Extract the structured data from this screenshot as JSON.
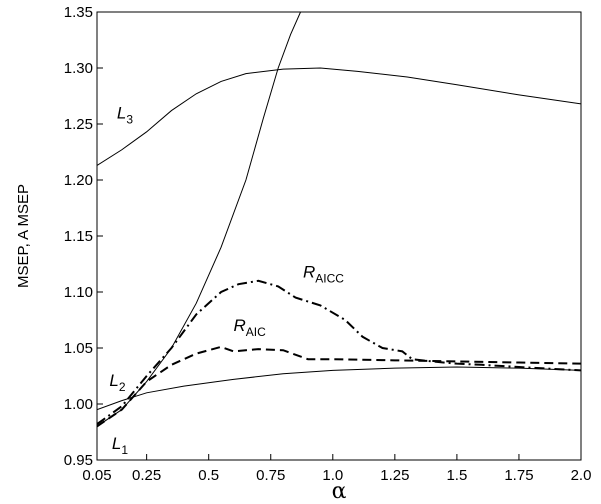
{
  "chart_data": {
    "type": "line",
    "xlabel": "α",
    "ylabel": "MSEP,  A MSEP",
    "xlim": [
      0.05,
      2.0
    ],
    "ylim": [
      0.95,
      1.35
    ],
    "x_ticks": [
      0.05,
      0.25,
      0.5,
      0.75,
      1.0,
      1.25,
      1.5,
      1.75,
      2.0
    ],
    "x_tick_labels": [
      "0.05",
      "0.25",
      "0.5",
      "0.75",
      "1.0",
      "1.25",
      "1.5",
      "1.75",
      "2.0"
    ],
    "y_ticks": [
      0.95,
      1.0,
      1.05,
      1.1,
      1.15,
      1.2,
      1.25,
      1.3,
      1.35
    ],
    "y_tick_labels": [
      "0.95",
      "1.00",
      "1.05",
      "1.10",
      "1.15",
      "1.20",
      "1.25",
      "1.30",
      "1.35"
    ],
    "grid": false,
    "legend": "none",
    "series": [
      {
        "name": "L1",
        "label_main": "L",
        "label_sub": "1",
        "style": "solid",
        "color": "#000000",
        "points": [
          [
            0.05,
            0.995
          ],
          [
            0.15,
            1.003
          ],
          [
            0.25,
            1.01
          ],
          [
            0.4,
            1.016
          ],
          [
            0.6,
            1.022
          ],
          [
            0.8,
            1.027
          ],
          [
            1.0,
            1.03
          ],
          [
            1.25,
            1.032
          ],
          [
            1.5,
            1.033
          ],
          [
            1.75,
            1.032
          ],
          [
            2.0,
            1.03
          ]
        ]
      },
      {
        "name": "L2",
        "label_main": "L",
        "label_sub": "2",
        "style": "solid",
        "color": "#000000",
        "points": [
          [
            0.05,
            0.98
          ],
          [
            0.15,
            0.995
          ],
          [
            0.25,
            1.02
          ],
          [
            0.35,
            1.05
          ],
          [
            0.45,
            1.09
          ],
          [
            0.55,
            1.14
          ],
          [
            0.65,
            1.2
          ],
          [
            0.72,
            1.255
          ],
          [
            0.78,
            1.3
          ],
          [
            0.83,
            1.33
          ],
          [
            0.87,
            1.35
          ]
        ]
      },
      {
        "name": "L3",
        "label_main": "L",
        "label_sub": "3",
        "style": "solid",
        "color": "#000000",
        "points": [
          [
            0.05,
            1.213
          ],
          [
            0.15,
            1.227
          ],
          [
            0.25,
            1.243
          ],
          [
            0.35,
            1.262
          ],
          [
            0.45,
            1.277
          ],
          [
            0.55,
            1.288
          ],
          [
            0.65,
            1.295
          ],
          [
            0.8,
            1.299
          ],
          [
            0.95,
            1.3
          ],
          [
            1.1,
            1.297
          ],
          [
            1.3,
            1.292
          ],
          [
            1.5,
            1.285
          ],
          [
            1.75,
            1.276
          ],
          [
            2.0,
            1.268
          ]
        ]
      },
      {
        "name": "R_AIC",
        "label_main": "R",
        "label_sub": "AIC",
        "style": "dashed",
        "color": "#000000",
        "points": [
          [
            0.05,
            0.98
          ],
          [
            0.15,
            0.995
          ],
          [
            0.25,
            1.02
          ],
          [
            0.35,
            1.035
          ],
          [
            0.45,
            1.045
          ],
          [
            0.55,
            1.051
          ],
          [
            0.6,
            1.047
          ],
          [
            0.7,
            1.049
          ],
          [
            0.8,
            1.048
          ],
          [
            0.9,
            1.04
          ],
          [
            1.0,
            1.04
          ],
          [
            1.25,
            1.039
          ],
          [
            1.5,
            1.038
          ],
          [
            1.75,
            1.037
          ],
          [
            2.0,
            1.036
          ]
        ]
      },
      {
        "name": "R_AICC",
        "label_main": "R",
        "label_sub": "AICC",
        "style": "dashdot",
        "color": "#000000",
        "points": [
          [
            0.05,
            0.982
          ],
          [
            0.15,
            0.998
          ],
          [
            0.25,
            1.025
          ],
          [
            0.35,
            1.05
          ],
          [
            0.45,
            1.08
          ],
          [
            0.55,
            1.1
          ],
          [
            0.62,
            1.107
          ],
          [
            0.7,
            1.11
          ],
          [
            0.78,
            1.105
          ],
          [
            0.85,
            1.095
          ],
          [
            0.95,
            1.088
          ],
          [
            1.05,
            1.075
          ],
          [
            1.12,
            1.06
          ],
          [
            1.2,
            1.05
          ],
          [
            1.28,
            1.047
          ],
          [
            1.32,
            1.04
          ],
          [
            1.4,
            1.038
          ],
          [
            1.5,
            1.036
          ],
          [
            1.6,
            1.035
          ],
          [
            1.75,
            1.033
          ],
          [
            2.0,
            1.03
          ]
        ]
      }
    ],
    "annotations": [
      {
        "series": "L3",
        "main": "L",
        "sub": "3",
        "x": 0.13,
        "y": 1.255
      },
      {
        "series": "L2",
        "main": "L",
        "sub": "2",
        "x": 0.1,
        "y": 1.016
      },
      {
        "series": "L1",
        "main": "L",
        "sub": "1",
        "x": 0.11,
        "y": 0.96
      },
      {
        "series": "R_AICC",
        "main": "R",
        "sub": "AICC",
        "x": 0.88,
        "y": 1.113
      },
      {
        "series": "R_AIC",
        "main": "R",
        "sub": "AIC",
        "x": 0.6,
        "y": 1.065
      }
    ]
  }
}
